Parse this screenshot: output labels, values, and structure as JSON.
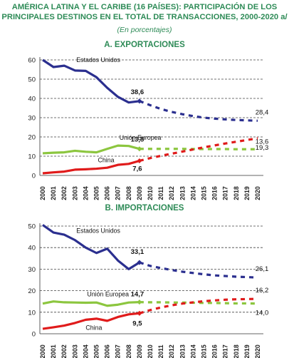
{
  "title_line1": "AMÉRICA LATINA Y EL CARIBE (16 PAÍSES): PARTICIPACIÓN DE LOS",
  "title_line2": "PRINCIPALES DESTINOS EN EL TOTAL DE TRANSACCIONES, 2000-2020 a/",
  "subtitle": "(En porcentajes)",
  "colors": {
    "title": "#2e8b57",
    "us": "#2b2f8f",
    "eu": "#8cc63f",
    "china": "#e01b1b"
  },
  "chart_data": [
    {
      "type": "line",
      "title": "A. EXPORTACIONES",
      "categories": [
        "2000",
        "2001",
        "2002",
        "2003",
        "2004",
        "2005",
        "2006",
        "2007",
        "2008",
        "2009",
        "2010",
        "2011",
        "2012",
        "2013",
        "2014",
        "2015",
        "2016",
        "2017",
        "2018",
        "2019",
        "2020"
      ],
      "ylim": [
        0,
        60
      ],
      "yticks": [
        0,
        10,
        20,
        30,
        40,
        50,
        60
      ],
      "grid": true,
      "series": [
        {
          "name": "Estados Unidos",
          "color": "#2b2f8f",
          "values": [
            60,
            56.3,
            57,
            54.5,
            54.3,
            51,
            45.5,
            40.8,
            37.9,
            38.6,
            null,
            null,
            null,
            null,
            null,
            null,
            null,
            null,
            null,
            null,
            null
          ],
          "projection": [
            null,
            null,
            null,
            null,
            null,
            null,
            null,
            null,
            null,
            38.6,
            36.5,
            34.5,
            33,
            31.8,
            30.8,
            30,
            29.5,
            29.1,
            28.8,
            28.6,
            28.4
          ],
          "label_2009": "38,6",
          "label_2020": "28,4"
        },
        {
          "name": "Unión Europea",
          "color": "#8cc63f",
          "values": [
            11.5,
            11.8,
            12,
            12.8,
            12.3,
            12,
            13.8,
            15.5,
            15.3,
            13.8,
            null,
            null,
            null,
            null,
            null,
            null,
            null,
            null,
            null,
            null,
            null
          ],
          "projection": [
            null,
            null,
            null,
            null,
            null,
            null,
            null,
            null,
            null,
            13.8,
            13.8,
            13.8,
            13.8,
            13.8,
            13.7,
            13.7,
            13.7,
            13.7,
            13.6,
            13.6,
            13.6
          ],
          "label_2009": "13,8",
          "label_2020": "13,6"
        },
        {
          "name": "China",
          "color": "#e01b1b",
          "values": [
            1.1,
            1.6,
            2,
            3,
            3.2,
            3.5,
            4,
            5.5,
            6,
            7.6,
            null,
            null,
            null,
            null,
            null,
            null,
            null,
            null,
            null,
            null,
            null
          ],
          "projection": [
            null,
            null,
            null,
            null,
            null,
            null,
            null,
            null,
            null,
            7.6,
            9,
            10.2,
            11.3,
            12.4,
            13.5,
            14.6,
            15.6,
            16.6,
            17.5,
            18.4,
            19.3
          ],
          "label_2009": "7,6",
          "label_2020": "19,3"
        }
      ]
    },
    {
      "type": "line",
      "title": "B. IMPORTACIONES",
      "categories": [
        "2000",
        "2001",
        "2002",
        "2003",
        "2004",
        "2005",
        "2006",
        "2007",
        "2008",
        "2009",
        "2010",
        "2011",
        "2012",
        "2013",
        "2014",
        "2015",
        "2016",
        "2017",
        "2018",
        "2019",
        "2020"
      ],
      "ylim": [
        0,
        50
      ],
      "yticks": [
        0,
        10,
        20,
        30,
        40,
        50
      ],
      "grid": true,
      "series": [
        {
          "name": "Estados Unidos",
          "color": "#2b2f8f",
          "values": [
            50.5,
            47,
            46,
            43.5,
            40,
            37.5,
            39.5,
            34,
            30,
            33.1,
            null,
            null,
            null,
            null,
            null,
            null,
            null,
            null,
            null,
            null,
            null
          ],
          "projection": [
            null,
            null,
            null,
            null,
            null,
            null,
            null,
            null,
            null,
            33.1,
            31.5,
            30.5,
            29.6,
            28.8,
            28.2,
            27.6,
            27.1,
            26.8,
            26.5,
            26.3,
            26.1
          ],
          "label_2009": "33,1",
          "label_2020": "26,1"
        },
        {
          "name": "Unión Europea",
          "color": "#8cc63f",
          "values": [
            14,
            15,
            14.6,
            14.5,
            14.4,
            14.5,
            13,
            13.5,
            14.5,
            14.7,
            null,
            null,
            null,
            null,
            null,
            null,
            null,
            null,
            null,
            null,
            null
          ],
          "projection": [
            null,
            null,
            null,
            null,
            null,
            null,
            null,
            null,
            null,
            14.7,
            14.6,
            14.6,
            14.5,
            14.5,
            14.4,
            14.3,
            14.3,
            14.2,
            14.1,
            14.1,
            14.0
          ],
          "label_2009": "14,7",
          "label_2020": "14,0"
        },
        {
          "name": "China",
          "color": "#e01b1b",
          "values": [
            2.3,
            3,
            3.8,
            5,
            6.5,
            7,
            6,
            7.8,
            9,
            9.5,
            null,
            null,
            null,
            null,
            null,
            null,
            null,
            null,
            null,
            null,
            null
          ],
          "projection": [
            null,
            null,
            null,
            null,
            null,
            null,
            null,
            null,
            null,
            9.5,
            11,
            12.2,
            13.2,
            14,
            14.6,
            15.1,
            15.5,
            15.8,
            16,
            16.1,
            16.2
          ],
          "label_2009": "9,5",
          "label_2020": "16,2"
        }
      ]
    }
  ]
}
